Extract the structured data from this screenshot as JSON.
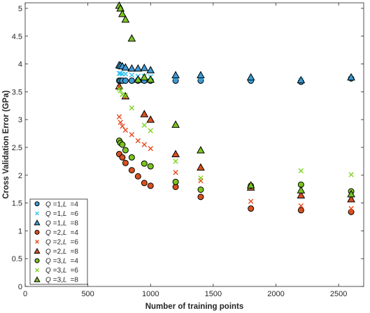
{
  "chart_data": {
    "type": "scatter",
    "title": "",
    "xlabel": "Number of training points",
    "ylabel": "Cross Validation Error (GPa)",
    "xlim": [
      0,
      2700
    ],
    "ylim": [
      0,
      5.1
    ],
    "xticks": [
      "0",
      "500",
      "1000",
      "1500",
      "2000",
      "2500"
    ],
    "xtick_values": [
      0,
      500,
      1000,
      1500,
      2000,
      2500
    ],
    "yticks": [
      "0",
      "0.5",
      "1",
      "1.5",
      "2",
      "2.5",
      "3",
      "3.5",
      "4",
      "4.5",
      "5"
    ],
    "ytick_values": [
      0,
      0.5,
      1,
      1.5,
      2,
      2.5,
      3,
      3.5,
      4,
      4.5,
      5
    ],
    "grid": false,
    "legend_position": "bottom-left",
    "series": [
      {
        "label": "Q =1,L  =4",
        "q": "1",
        "l": "4",
        "marker": "circle",
        "color": "#3d9bd6",
        "x": [
          750,
          760,
          775,
          800,
          850,
          900,
          950,
          1000,
          1200,
          1400,
          1800,
          2200,
          2600
        ],
        "y": [
          3.7,
          3.7,
          3.7,
          3.7,
          3.7,
          3.7,
          3.7,
          3.7,
          3.7,
          3.7,
          3.7,
          3.68,
          3.74
        ]
      },
      {
        "label": "Q =1,L  =6",
        "q": "1",
        "l": "6",
        "marker": "x",
        "color": "#33c3f0",
        "x": [
          750,
          760,
          775,
          800,
          850,
          900,
          950,
          1000,
          1200,
          1400,
          1800,
          2200,
          2600
        ],
        "y": [
          3.83,
          3.83,
          3.82,
          3.82,
          3.8,
          3.78,
          3.78,
          3.77,
          3.76,
          3.76,
          3.73,
          3.71,
          3.74
        ]
      },
      {
        "label": "Q =1,L  =8",
        "q": "1",
        "l": "8",
        "marker": "triangle",
        "color": "#3d9bd6",
        "x": [
          750,
          760,
          775,
          800,
          850,
          900,
          950,
          1000,
          1200,
          1400,
          1800,
          2200,
          2600
        ],
        "y": [
          3.98,
          3.97,
          3.96,
          3.94,
          3.92,
          3.92,
          3.93,
          3.89,
          3.8,
          3.8,
          3.76,
          3.71,
          3.76
        ]
      },
      {
        "label": "Q =2,L  =4",
        "q": "2",
        "l": "4",
        "marker": "circle",
        "color": "#d9501f",
        "x": [
          750,
          775,
          800,
          850,
          900,
          950,
          1000,
          1200,
          1400,
          1800,
          2200,
          2600
        ],
        "y": [
          2.38,
          2.32,
          2.22,
          2.09,
          1.98,
          1.86,
          1.81,
          1.79,
          1.61,
          1.4,
          1.37,
          1.34
        ]
      },
      {
        "label": "Q =2,L  =6",
        "q": "2",
        "l": "6",
        "marker": "x",
        "color": "#e8491d",
        "x": [
          750,
          760,
          775,
          800,
          850,
          900,
          950,
          1000,
          1200,
          1400,
          1800,
          2200,
          2600
        ],
        "y": [
          3.05,
          2.95,
          2.88,
          2.81,
          2.73,
          2.62,
          2.55,
          2.48,
          2.05,
          1.9,
          1.53,
          1.45,
          1.4
        ]
      },
      {
        "label": "Q =2,L  =8",
        "q": "2",
        "l": "8",
        "marker": "triangle",
        "color": "#d9501f",
        "x": [
          750,
          800,
          950,
          1000,
          1200,
          1400,
          1800,
          2200,
          2600
        ],
        "y": [
          3.6,
          3.42,
          3.1,
          3.0,
          2.38,
          2.14,
          1.78,
          1.64,
          1.57
        ]
      },
      {
        "label": "Q =3,L  =4",
        "q": "3",
        "l": "4",
        "marker": "circle",
        "color": "#7ac520",
        "x": [
          750,
          760,
          775,
          800,
          850,
          950,
          1000,
          1200,
          1400,
          1800,
          2200,
          2600
        ],
        "y": [
          2.62,
          2.58,
          2.55,
          2.45,
          2.32,
          2.21,
          2.16,
          1.88,
          1.74,
          1.81,
          1.83,
          1.71
        ]
      },
      {
        "label": "Q =3,L  =6",
        "q": "3",
        "l": "6",
        "marker": "x",
        "color": "#7ed321",
        "x": [
          750,
          760,
          775,
          800,
          850,
          950,
          1000,
          1200,
          1400,
          1800,
          2200,
          2600
        ],
        "y": [
          3.55,
          3.52,
          3.45,
          3.43,
          3.21,
          2.9,
          2.8,
          2.25,
          1.95,
          1.79,
          2.08,
          2.01
        ]
      },
      {
        "label": "Q =3,L  =8",
        "q": "3",
        "l": "8",
        "marker": "triangle",
        "color": "#7ac520",
        "x": [
          750,
          760,
          775,
          800,
          850,
          900,
          950,
          1000,
          1200,
          1400,
          1800,
          2200,
          2600
        ],
        "y": [
          5.05,
          5.0,
          4.9,
          4.8,
          4.46,
          3.72,
          3.76,
          3.72,
          2.91,
          2.45,
          1.82,
          1.73,
          1.66
        ]
      }
    ]
  }
}
